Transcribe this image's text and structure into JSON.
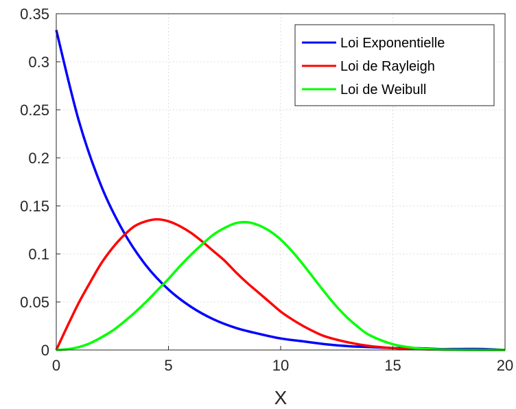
{
  "chart_data": {
    "type": "line",
    "title": "",
    "xlabel": "X",
    "ylabel": "",
    "xlim": [
      0,
      20
    ],
    "ylim": [
      0,
      0.35
    ],
    "xticks": [
      0,
      5,
      10,
      15,
      20
    ],
    "yticks": [
      0,
      0.05,
      0.1,
      0.15,
      0.2,
      0.25,
      0.3,
      0.35
    ],
    "xtick_labels": [
      "0",
      "5",
      "10",
      "15",
      "20"
    ],
    "ytick_labels": [
      "0",
      "0.05",
      "0.1",
      "0.15",
      "0.2",
      "0.25",
      "0.3",
      "0.35"
    ],
    "grid": true,
    "legend_position": "top-right",
    "series": [
      {
        "name": "Loi Exponentielle",
        "color": "#0000ff",
        "x": [
          0,
          1,
          2,
          3,
          4,
          5,
          6,
          7,
          8,
          9,
          10,
          11,
          12,
          13,
          14,
          15,
          16,
          17,
          18,
          19,
          20
        ],
        "y": [
          0.333,
          0.239,
          0.171,
          0.123,
          0.088,
          0.063,
          0.045,
          0.032,
          0.023,
          0.017,
          0.012,
          0.009,
          0.006,
          0.004,
          0.003,
          0.002,
          0.002,
          0.001,
          0.001,
          0.001,
          0.0
        ]
      },
      {
        "name": "Loi de Rayleigh",
        "color": "#ff0000",
        "x": [
          0,
          0.5,
          1,
          1.5,
          2,
          2.5,
          3,
          3.5,
          4,
          4.5,
          5,
          5.5,
          6,
          6.5,
          7,
          7.5,
          8,
          8.5,
          9,
          9.5,
          10,
          10.5,
          11,
          11.5,
          12,
          13,
          14,
          15,
          16,
          17,
          18,
          19,
          20
        ],
        "y": [
          0,
          0.025,
          0.049,
          0.07,
          0.09,
          0.106,
          0.119,
          0.129,
          0.134,
          0.136,
          0.134,
          0.129,
          0.122,
          0.113,
          0.103,
          0.093,
          0.081,
          0.07,
          0.06,
          0.05,
          0.04,
          0.032,
          0.025,
          0.019,
          0.014,
          0.008,
          0.004,
          0.002,
          0.001,
          0.0005,
          0.0002,
          0.0001,
          0.0
        ]
      },
      {
        "name": "Loi de Weibull",
        "color": "#00ff00",
        "x": [
          0,
          0.5,
          1,
          1.5,
          2,
          2.5,
          3,
          3.5,
          4,
          4.5,
          5,
          5.5,
          6,
          6.5,
          7,
          7.5,
          8,
          8.5,
          9,
          9.5,
          10,
          10.5,
          11,
          11.5,
          12,
          12.5,
          13,
          13.5,
          14,
          15,
          16,
          17,
          18,
          19,
          20
        ],
        "y": [
          0,
          0.0008,
          0.003,
          0.007,
          0.013,
          0.02,
          0.029,
          0.039,
          0.05,
          0.062,
          0.074,
          0.087,
          0.099,
          0.11,
          0.12,
          0.127,
          0.132,
          0.133,
          0.13,
          0.124,
          0.115,
          0.103,
          0.089,
          0.074,
          0.059,
          0.045,
          0.033,
          0.023,
          0.015,
          0.006,
          0.002,
          0.0005,
          0.0001,
          0.0,
          0.0
        ]
      }
    ]
  }
}
